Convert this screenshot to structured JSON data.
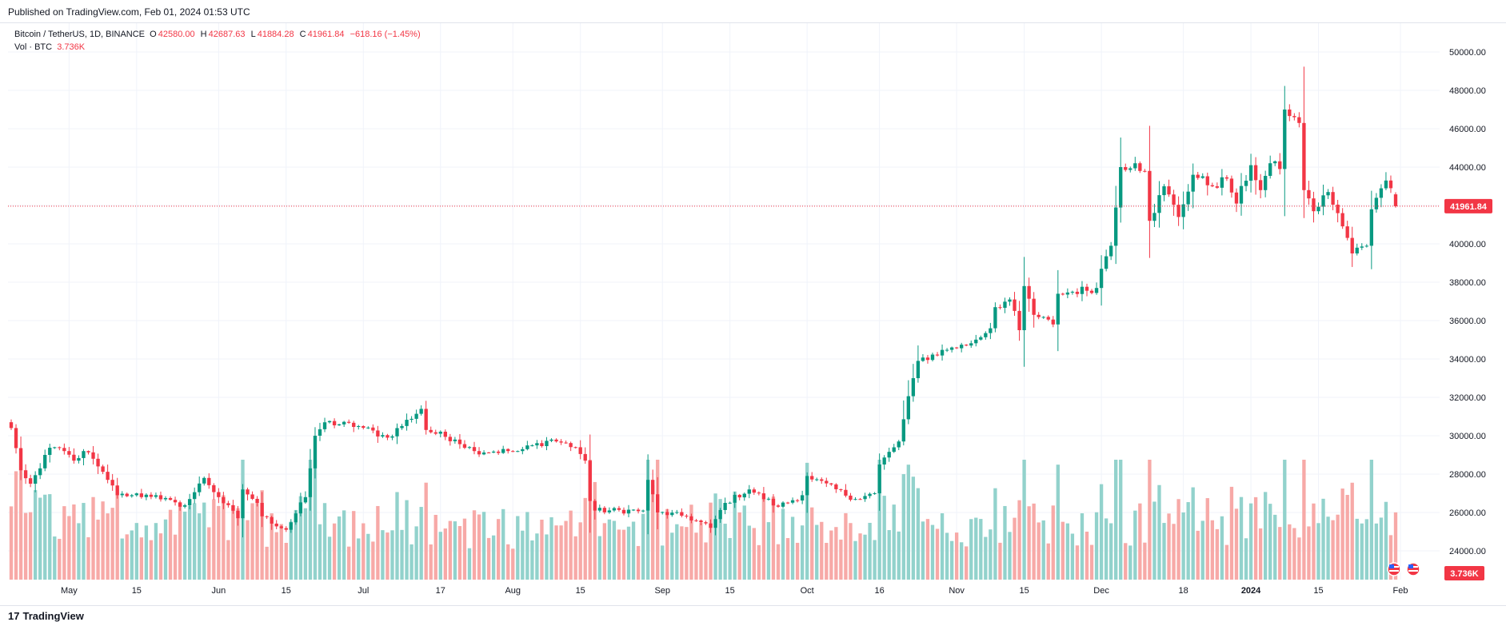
{
  "published": "Published on TradingView.com, Feb 01, 2024 01:53 UTC",
  "legend": {
    "symbol": "Bitcoin / TetherUS, 1D, BINANCE",
    "o_label": "O",
    "o": "42580.00",
    "h_label": "H",
    "h": "42687.63",
    "l_label": "L",
    "l": "41884.28",
    "c_label": "C",
    "c": "41961.84",
    "change": "−618.16 (−1.45%)",
    "vol_label": "Vol · BTC",
    "vol_value": "3.736K"
  },
  "price_badge": "41961.84",
  "volume_badge": "3.736K",
  "footer": {
    "logo_mark": "17",
    "logo_text": "TradingView"
  },
  "colors": {
    "up": "#089981",
    "down": "#f23645",
    "vol_up": "#92d2cc",
    "vol_down": "#f7a9a7",
    "grid": "#f0f3fa"
  },
  "chart_data": {
    "type": "candlestick",
    "symbol": "Bitcoin / TetherUS",
    "interval": "1D",
    "exchange": "BINANCE",
    "start_date": "2023-04-19",
    "ylim": [
      22500,
      51500
    ],
    "y_ticks": [
      24000,
      26000,
      28000,
      30000,
      32000,
      34000,
      36000,
      38000,
      40000,
      42000,
      44000,
      46000,
      48000,
      50000
    ],
    "y_tick_labels": [
      "24000.00",
      "26000.00",
      "28000.00",
      "30000.00",
      "32000.00",
      "34000.00",
      "36000.00",
      "38000.00",
      "40000.00",
      "42000.00",
      "44000.00",
      "46000.00",
      "48000.00",
      "50000.00"
    ],
    "x_labels": [
      {
        "label": "May",
        "date": "2023-05-01",
        "bold": false
      },
      {
        "label": "15",
        "date": "2023-05-15",
        "bold": false
      },
      {
        "label": "Jun",
        "date": "2023-06-01",
        "bold": false
      },
      {
        "label": "15",
        "date": "2023-06-15",
        "bold": false
      },
      {
        "label": "Jul",
        "date": "2023-07-01",
        "bold": false
      },
      {
        "label": "17",
        "date": "2023-07-17",
        "bold": false
      },
      {
        "label": "Aug",
        "date": "2023-08-01",
        "bold": false
      },
      {
        "label": "15",
        "date": "2023-08-15",
        "bold": false
      },
      {
        "label": "Sep",
        "date": "2023-09-01",
        "bold": false
      },
      {
        "label": "15",
        "date": "2023-09-15",
        "bold": false
      },
      {
        "label": "Oct",
        "date": "2023-10-01",
        "bold": false
      },
      {
        "label": "16",
        "date": "2023-10-16",
        "bold": false
      },
      {
        "label": "Nov",
        "date": "2023-11-01",
        "bold": false
      },
      {
        "label": "15",
        "date": "2023-11-15",
        "bold": false
      },
      {
        "label": "Dec",
        "date": "2023-12-01",
        "bold": false
      },
      {
        "label": "18",
        "date": "2023-12-18",
        "bold": false
      },
      {
        "label": "2024",
        "date": "2024-01-01",
        "bold": true
      },
      {
        "label": "15",
        "date": "2024-01-15",
        "bold": false
      },
      {
        "label": "Feb",
        "date": "2024-02-01",
        "bold": false
      }
    ],
    "last_price": 41961.84,
    "close_anchors": [
      [
        "2023-04-19",
        30400
      ],
      [
        "2023-04-21",
        28200
      ],
      [
        "2023-04-23",
        27500
      ],
      [
        "2023-04-25",
        28300
      ],
      [
        "2023-04-26",
        29000
      ],
      [
        "2023-04-28",
        29400
      ],
      [
        "2023-04-30",
        29200
      ],
      [
        "2023-05-02",
        28700
      ],
      [
        "2023-05-04",
        29200
      ],
      [
        "2023-05-06",
        28800
      ],
      [
        "2023-05-07",
        28400
      ],
      [
        "2023-05-09",
        27700
      ],
      [
        "2023-05-11",
        26900
      ],
      [
        "2023-05-14",
        26900
      ],
      [
        "2023-05-19",
        26900
      ],
      [
        "2023-05-24",
        26300
      ],
      [
        "2023-05-26",
        26700
      ],
      [
        "2023-05-29",
        27800
      ],
      [
        "2023-06-01",
        26800
      ],
      [
        "2023-06-05",
        25700
      ],
      [
        "2023-06-06",
        27200
      ],
      [
        "2023-06-09",
        26500
      ],
      [
        "2023-06-10",
        25800
      ],
      [
        "2023-06-15",
        25100
      ],
      [
        "2023-06-19",
        26800
      ],
      [
        "2023-06-20",
        28300
      ],
      [
        "2023-06-21",
        30000
      ],
      [
        "2023-06-23",
        30700
      ],
      [
        "2023-06-30",
        30500
      ],
      [
        "2023-07-06",
        29900
      ],
      [
        "2023-07-13",
        31400
      ],
      [
        "2023-07-14",
        30300
      ],
      [
        "2023-07-20",
        29800
      ],
      [
        "2023-07-24",
        29200
      ],
      [
        "2023-07-31",
        29200
      ],
      [
        "2023-08-02",
        29200
      ],
      [
        "2023-08-09",
        29800
      ],
      [
        "2023-08-14",
        29400
      ],
      [
        "2023-08-16",
        28700
      ],
      [
        "2023-08-17",
        26600
      ],
      [
        "2023-08-18",
        26100
      ],
      [
        "2023-08-28",
        26100
      ],
      [
        "2023-08-29",
        27700
      ],
      [
        "2023-08-31",
        26000
      ],
      [
        "2023-09-06",
        25800
      ],
      [
        "2023-09-11",
        25200
      ],
      [
        "2023-09-14",
        26500
      ],
      [
        "2023-09-19",
        27200
      ],
      [
        "2023-09-25",
        26300
      ],
      [
        "2023-09-30",
        26900
      ],
      [
        "2023-10-01",
        27900
      ],
      [
        "2023-10-11",
        26700
      ],
      [
        "2023-10-15",
        27000
      ],
      [
        "2023-10-16",
        28500
      ],
      [
        "2023-10-20",
        29700
      ],
      [
        "2023-10-23",
        33000
      ],
      [
        "2023-10-24",
        33900
      ],
      [
        "2023-10-31",
        34600
      ],
      [
        "2023-11-03",
        34700
      ],
      [
        "2023-11-08",
        35600
      ],
      [
        "2023-11-09",
        36700
      ],
      [
        "2023-11-12",
        37100
      ],
      [
        "2023-11-14",
        35500
      ],
      [
        "2023-11-15",
        37800
      ],
      [
        "2023-11-17",
        36300
      ],
      [
        "2023-11-21",
        35800
      ],
      [
        "2023-11-22",
        37400
      ],
      [
        "2023-11-30",
        37700
      ],
      [
        "2023-12-01",
        38700
      ],
      [
        "2023-12-03",
        39900
      ],
      [
        "2023-12-05",
        44000
      ],
      [
        "2023-12-08",
        44200
      ],
      [
        "2023-12-10",
        43800
      ],
      [
        "2023-12-11",
        41200
      ],
      [
        "2023-12-14",
        43000
      ],
      [
        "2023-12-17",
        41400
      ],
      [
        "2023-12-20",
        43600
      ],
      [
        "2023-12-24",
        43000
      ],
      [
        "2023-12-27",
        43400
      ],
      [
        "2023-12-29",
        42100
      ],
      [
        "2024-01-01",
        44100
      ],
      [
        "2024-01-03",
        42800
      ],
      [
        "2024-01-05",
        44200
      ],
      [
        "2024-01-07",
        43900
      ],
      [
        "2024-01-08",
        47000
      ],
      [
        "2024-01-10",
        46600
      ],
      [
        "2024-01-11",
        46300
      ],
      [
        "2024-01-12",
        42800
      ],
      [
        "2024-01-14",
        41700
      ],
      [
        "2024-01-17",
        42700
      ],
      [
        "2024-01-19",
        41600
      ],
      [
        "2024-01-22",
        39500
      ],
      [
        "2024-01-23",
        39800
      ],
      [
        "2024-01-25",
        39900
      ],
      [
        "2024-01-26",
        41800
      ],
      [
        "2024-01-29",
        43300
      ],
      [
        "2024-01-30",
        42900
      ],
      [
        "2024-01-31",
        41961.84
      ]
    ],
    "volume_note": "volume histogram per day, colored by candle direction"
  }
}
